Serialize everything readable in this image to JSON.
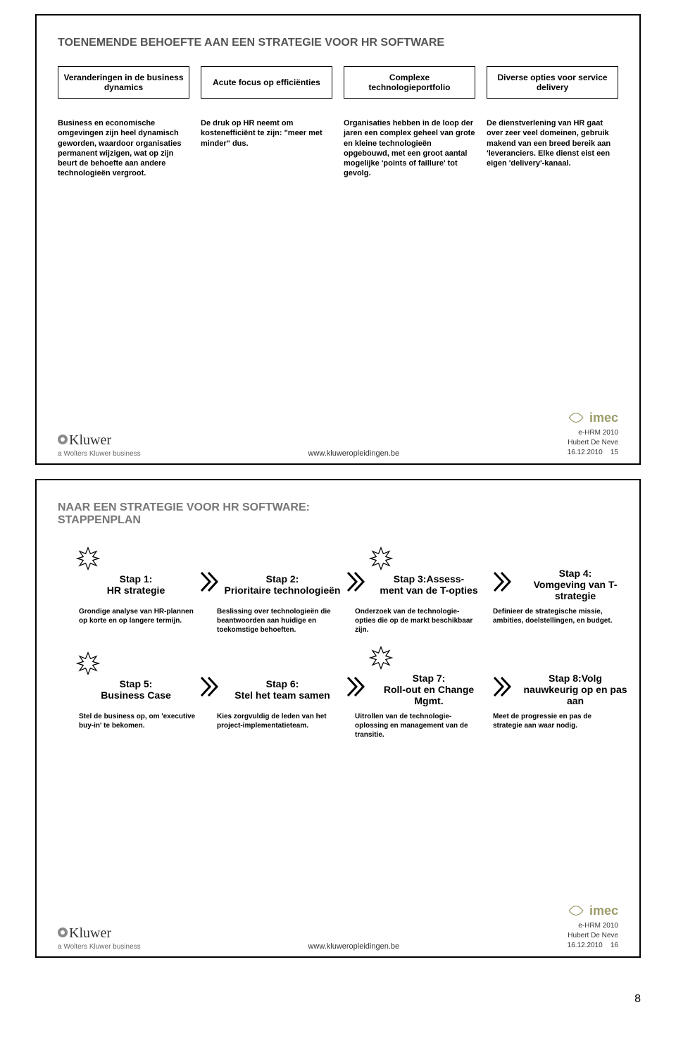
{
  "page_number": "8",
  "slide1": {
    "title": "TOENEMENDE BEHOEFTE AAN EEN STRATEGIE VOOR HR SOFTWARE",
    "boxes": [
      "Veranderingen in de business dynamics",
      "Acute focus op efficiënties",
      "Complexe technologieportfolio",
      "Diverse opties voor service delivery"
    ],
    "descs": [
      "Business en economische omgevingen zijn heel dynamisch geworden, waardoor organisaties permanent wijzigen, wat op zijn beurt de behoefte aan andere technologieën vergroot.",
      "De druk op HR neemt om kostenefficiënt te zijn: \"meer met minder\" dus.",
      "Organisaties hebben in de loop der jaren een complex geheel van grote en kleine technologieën opgebouwd, met een groot aantal mogelijke 'points of faillure' tot gevolg.",
      "De dienstverlening van HR gaat over zeer veel domeinen, gebruik makend van een breed bereik aan 'leveranciers. Elke dienst eist een eigen 'delivery'-kanaal."
    ],
    "footer": {
      "brand": "Kluwer",
      "subbrand": "a Wolters Kluwer business",
      "url": "www.kluweropleidingen.be",
      "partner": "imec",
      "meta_title": "e-HRM 2010",
      "meta_author": "Hubert De Neve",
      "meta_date": "16.12.2010",
      "slidenum": "15"
    }
  },
  "slide2": {
    "title": "NAAR EEN STRATEGIE VOOR HR SOFTWARE: STAPPENPLAN",
    "burst_color": "#ffffff",
    "burst_stroke": "#000000",
    "row1": {
      "steps": [
        {
          "t": "Stap 1:",
          "s": "HR strategie",
          "burst": true
        },
        {
          "t": "Stap 2:",
          "s": "Prioritaire technologieën",
          "burst": false
        },
        {
          "t": "Stap 3:Assess-",
          "s": "ment van de T-opties",
          "burst": true
        },
        {
          "t": "Stap 4:",
          "s": "Vomgeving van T-strategie",
          "burst": false
        }
      ],
      "descs": [
        "Grondige analyse van HR-plannen op korte en op langere termijn.",
        "Beslissing over technologieën die beantwoorden aan huidige en toekomstige behoeften.",
        "Onderzoek van de technologie-opties die op de markt beschikbaar zijn.",
        "Definieer de strategische missie, ambities, doelstellingen, en budget."
      ]
    },
    "row2": {
      "steps": [
        {
          "t": "Stap 5:",
          "s": "Business Case",
          "burst": true
        },
        {
          "t": "Stap 6:",
          "s": "Stel het team samen",
          "burst": false
        },
        {
          "t": "Stap 7:",
          "s": "Roll-out en Change Mgmt.",
          "burst": true
        },
        {
          "t": "Stap 8:Volg",
          "s": "nauwkeurig op en pas aan",
          "burst": false
        }
      ],
      "descs": [
        "Stel de business op, om 'executive buy-in' te bekomen.",
        "Kies zorgvuldig de leden van het project-implementatieteam.",
        "Uitrollen van de technologie-oplossing en management van de transitie.",
        "Meet de progressie en pas de strategie aan waar nodig."
      ]
    },
    "footer": {
      "brand": "Kluwer",
      "subbrand": "a Wolters Kluwer business",
      "url": "www.kluweropleidingen.be",
      "partner": "imec",
      "meta_title": "e-HRM 2010",
      "meta_author": "Hubert De Neve",
      "meta_date": "16.12.2010",
      "slidenum": "16"
    }
  }
}
